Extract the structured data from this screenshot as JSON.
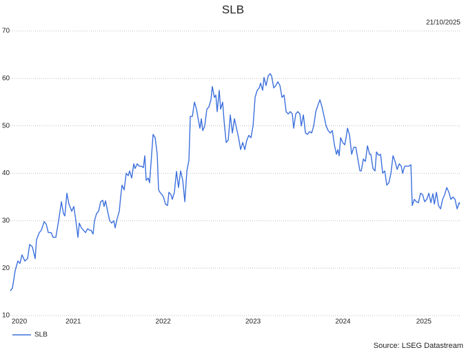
{
  "chart_data": {
    "type": "line",
    "title": "SLB",
    "date": "21/10/2025",
    "source": "Source: LSEG Datastream",
    "xlim": [
      2020.8,
      2025.8
    ],
    "ylim": [
      10,
      70
    ],
    "yticks": [
      10,
      20,
      30,
      40,
      50,
      60,
      70
    ],
    "xticks": [
      {
        "value": 2020.9,
        "label": "2020"
      },
      {
        "value": 2021.5,
        "label": "2021"
      },
      {
        "value": 2022.5,
        "label": "2022"
      },
      {
        "value": 2023.5,
        "label": "2023"
      },
      {
        "value": 2024.5,
        "label": "2024"
      },
      {
        "value": 2025.4,
        "label": "2025"
      }
    ],
    "grid": true,
    "legend": "bottom-left",
    "x": [
      2020.8,
      2020.823,
      2020.854,
      2020.884,
      2020.907,
      2020.93,
      2020.961,
      2020.992,
      2021.015,
      2021.045,
      2021.076,
      2021.091,
      2021.122,
      2021.145,
      2021.176,
      2021.199,
      2021.222,
      2021.253,
      2021.276,
      2021.306,
      2021.337,
      2021.368,
      2021.391,
      2021.406,
      2021.429,
      2021.452,
      2021.483,
      2021.506,
      2021.529,
      2021.552,
      2021.567,
      2021.59,
      2021.613,
      2021.636,
      2021.659,
      2021.682,
      2021.697,
      2021.72,
      2021.736,
      2021.759,
      2021.782,
      2021.805,
      2021.828,
      2021.843,
      2021.859,
      2021.882,
      2021.905,
      2021.927,
      2021.951,
      2021.966,
      2021.989,
      2022.012,
      2022.027,
      2022.043,
      2022.066,
      2022.089,
      2022.112,
      2022.127,
      2022.15,
      2022.173,
      2022.188,
      2022.211,
      2022.234,
      2022.257,
      2022.28,
      2022.296,
      2022.311,
      2022.334,
      2022.349,
      2022.372,
      2022.388,
      2022.411,
      2022.434,
      2022.449,
      2022.464,
      2022.487,
      2022.503,
      2022.526,
      2022.549,
      2022.564,
      2022.587,
      2022.602,
      2022.625,
      2022.648,
      2022.671,
      2022.694,
      2022.718,
      2022.741,
      2022.764,
      2022.787,
      2022.802,
      2022.825,
      2022.848,
      2022.871,
      2022.894,
      2022.909,
      2022.925,
      2022.94,
      2022.963,
      2022.986,
      2023.009,
      2023.032,
      2023.047,
      2023.07,
      2023.086,
      2023.101,
      2023.124,
      2023.139,
      2023.162,
      2023.178,
      2023.201,
      2023.224,
      2023.247,
      2023.27,
      2023.293,
      2023.316,
      2023.339,
      2023.362,
      2023.385,
      2023.408,
      2023.431,
      2023.454,
      2023.477,
      2023.5,
      2023.523,
      2023.546,
      2023.569,
      2023.584,
      2023.607,
      2023.622,
      2023.645,
      2023.668,
      2023.691,
      2023.707,
      2023.73,
      2023.753,
      2023.776,
      2023.799,
      2023.822,
      2023.845,
      2023.868,
      2023.891,
      2023.914,
      2023.937,
      2023.952,
      2023.975,
      2023.998,
      2024.021,
      2024.037,
      2024.06,
      2024.083,
      2024.106,
      2024.129,
      2024.152,
      2024.175,
      2024.198,
      2024.221,
      2024.244,
      2024.267,
      2024.29,
      2024.313,
      2024.336,
      2024.359,
      2024.382,
      2024.405,
      2024.428,
      2024.443,
      2024.458,
      2024.474,
      2024.497,
      2024.52,
      2024.535,
      2024.551,
      2024.574,
      2024.597,
      2024.62,
      2024.643,
      2024.666,
      2024.689,
      2024.704,
      2024.727,
      2024.75,
      2024.773,
      2024.796,
      2024.811,
      2024.834,
      2024.857,
      2024.873,
      2024.896,
      2024.919,
      2024.942,
      2024.965,
      2024.988,
      2025.011,
      2025.034,
      2025.057,
      2025.08,
      2025.103,
      2025.126,
      2025.149,
      2025.164,
      2025.187,
      2025.21,
      2025.233,
      2025.256,
      2025.271,
      2025.294,
      2025.317,
      2025.34,
      2025.363,
      2025.386,
      2025.409,
      2025.432,
      2025.455,
      2025.478,
      2025.501,
      2025.517,
      2025.54,
      2025.563,
      2025.586,
      2025.609,
      2025.632,
      2025.655,
      2025.678,
      2025.701,
      2025.724,
      2025.747,
      2025.77,
      2025.793,
      2025.8
    ],
    "series": [
      {
        "name": "SLB",
        "color": "#3b6fdc",
        "values": [
          15.2,
          15.8,
          19.5,
          21.5,
          21,
          22.8,
          21.5,
          22,
          25,
          24.5,
          22,
          26,
          27.5,
          28,
          29.8,
          29.3,
          27.5,
          27.5,
          26.5,
          26.5,
          30,
          34,
          31.5,
          31,
          35.8,
          33.5,
          32,
          33,
          30,
          26.5,
          29.5,
          28.5,
          28,
          27.5,
          28.3,
          28,
          28,
          27.2,
          30,
          31.5,
          32,
          34,
          34.3,
          33,
          34.2,
          32,
          30,
          29.5,
          30,
          28.5,
          30.5,
          32,
          35,
          37.5,
          36.5,
          40,
          39.5,
          40.5,
          39,
          42,
          41,
          42,
          41.5,
          41.5,
          41.2,
          43.7,
          38.5,
          39,
          38,
          44,
          48.2,
          47.5,
          44,
          36.5,
          36,
          35.5,
          35,
          33.5,
          33.2,
          36,
          35.5,
          34.5,
          36,
          40.4,
          37,
          40.5,
          38.5,
          34,
          40.5,
          42.8,
          52,
          52,
          55,
          53.5,
          51,
          49.5,
          51.5,
          49,
          50,
          53.5,
          54,
          55.5,
          58.3,
          56,
          56.5,
          53,
          57.5,
          53.5,
          55,
          51,
          46.5,
          47,
          52.3,
          48.5,
          51.5,
          49.5,
          47.5,
          45,
          46.5,
          45,
          47,
          48,
          47.5,
          50,
          56,
          57.5,
          58,
          59,
          57.5,
          60.2,
          58.5,
          60.5,
          61,
          60.5,
          58,
          58.5,
          59.3,
          58.5,
          56,
          56.5,
          53,
          52.5,
          53,
          52.5,
          49.5,
          52.5,
          53,
          52.5,
          50,
          52.3,
          48.5,
          48.2,
          48.8,
          48.5,
          50,
          53,
          54.3,
          55.5,
          54,
          52,
          50,
          49,
          48.5,
          49,
          46,
          44,
          45,
          43.7,
          47.5,
          46.5,
          46,
          47.5,
          49.5,
          48,
          44,
          45.5,
          45.5,
          43,
          40.5,
          40.5,
          43,
          42.5,
          45.8,
          44,
          44,
          41,
          40.5,
          44.5,
          43.8,
          44,
          40,
          40.5,
          37.5,
          38,
          40,
          43.7,
          42.5,
          40.8,
          42,
          41.5,
          40,
          41.5,
          41.5,
          41.5,
          41.8,
          33.2,
          34.5,
          34,
          33.8,
          35.8,
          35.5,
          34,
          34.5,
          35.8,
          33.8,
          35.7,
          33.5,
          36,
          33.2,
          32.5,
          34.5,
          35.5,
          37,
          36,
          34.5,
          35,
          34.5,
          32.5,
          33.8,
          33.5
        ]
      }
    ]
  }
}
